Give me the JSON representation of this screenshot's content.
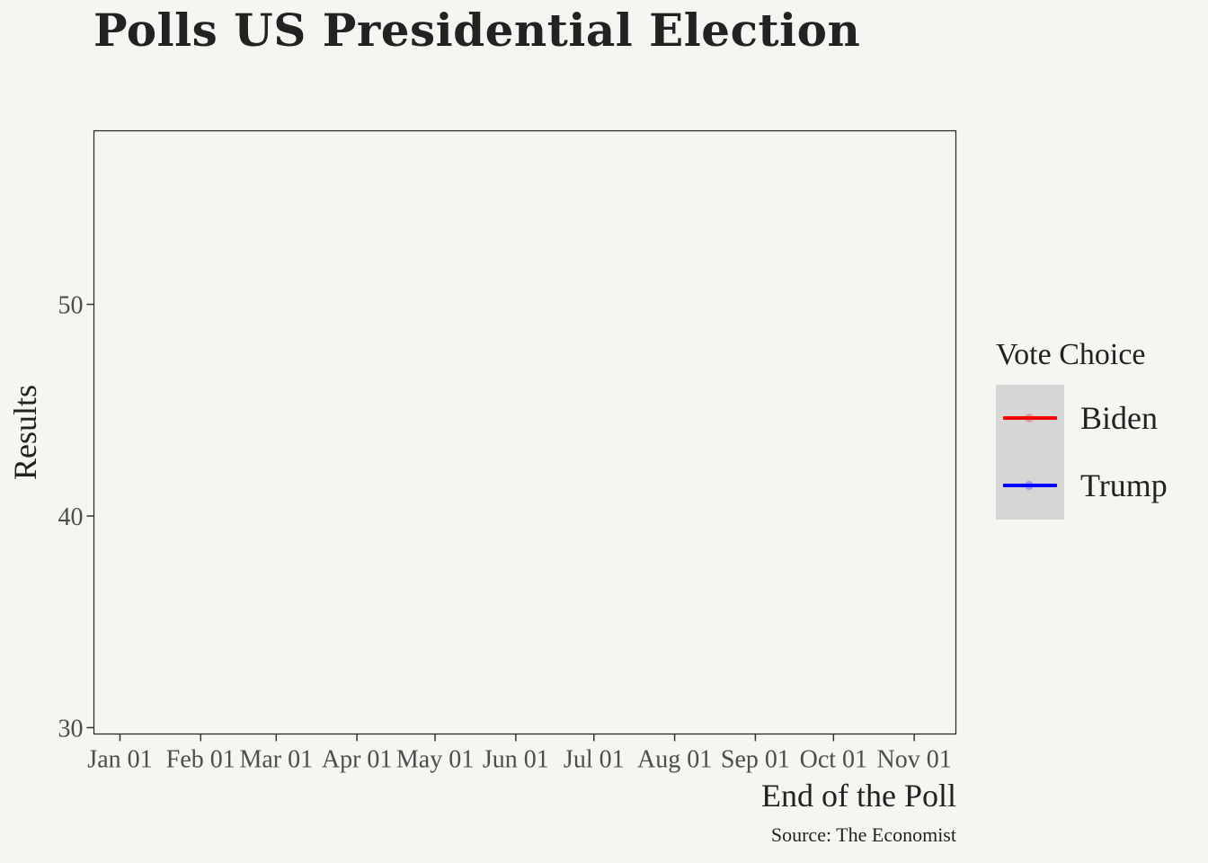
{
  "chart_data": {
    "type": "line",
    "title": "Polls US Presidential Election",
    "xlabel": "End of the Poll",
    "ylabel": "Results",
    "caption": "Source: The Economist",
    "x_ticks": [
      "Jan 01",
      "Feb 01",
      "Mar 01",
      "Apr 01",
      "May 01",
      "Jun 01",
      "Jul 01",
      "Aug 01",
      "Sep 01",
      "Oct 01",
      "Nov 01"
    ],
    "x_tick_dates": [
      "2020-01-01",
      "2020-02-01",
      "2020-03-01",
      "2020-04-01",
      "2020-05-01",
      "2020-06-01",
      "2020-07-01",
      "2020-08-01",
      "2020-09-01",
      "2020-10-01",
      "2020-11-01"
    ],
    "xlim": [
      "2019-12-22",
      "2020-11-17"
    ],
    "y_ticks": [
      30,
      40,
      50
    ],
    "ylim": [
      29.7,
      58.2
    ],
    "grid": false,
    "legend": {
      "title": "Vote Choice",
      "position": "right",
      "entries": [
        {
          "name": "Biden",
          "color": "#ff0000"
        },
        {
          "name": "Trump",
          "color": "#0000ff"
        }
      ]
    },
    "series": [
      {
        "name": "Biden",
        "color": "#ff0000",
        "points": []
      },
      {
        "name": "Trump",
        "color": "#0000ff",
        "points": []
      }
    ]
  }
}
